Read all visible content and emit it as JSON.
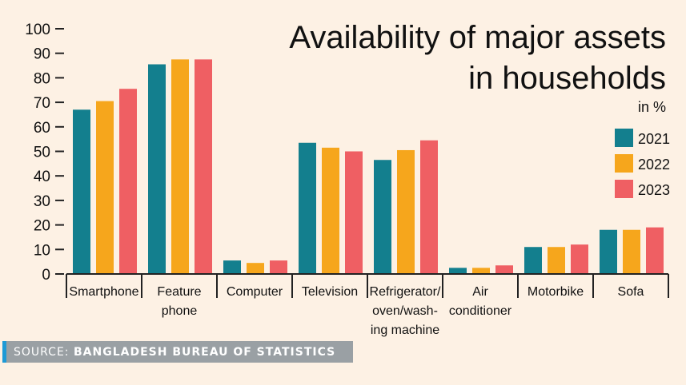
{
  "chart_data": {
    "type": "bar",
    "title": "Availability of major assets in households",
    "title_lines": [
      "Availability of major assets",
      "in households"
    ],
    "unit_label": "in %",
    "categories": [
      [
        "Smartphone"
      ],
      [
        "Feature",
        "phone"
      ],
      [
        "Computer"
      ],
      [
        "Television"
      ],
      [
        "Refrigerator/",
        "oven/wash-",
        "ing machine"
      ],
      [
        "Air",
        "conditioner"
      ],
      [
        "Motorbike"
      ],
      [
        "Sofa"
      ]
    ],
    "series": [
      {
        "name": "2021",
        "color": "#137f8e",
        "values": [
          67,
          85.5,
          5.5,
          53.5,
          46.5,
          2.5,
          11,
          18
        ]
      },
      {
        "name": "2022",
        "color": "#f6a61c",
        "values": [
          70.5,
          87.5,
          4.5,
          51.5,
          50.5,
          2.5,
          11,
          18
        ]
      },
      {
        "name": "2023",
        "color": "#ef5f63",
        "values": [
          75.5,
          87.5,
          5.5,
          50,
          54.5,
          3.5,
          12,
          19
        ]
      }
    ],
    "ylim": [
      0,
      100
    ],
    "yticks": [
      0,
      10,
      20,
      30,
      40,
      50,
      60,
      70,
      80,
      90,
      100
    ],
    "legend": "right",
    "grid": false
  },
  "source": {
    "prefix": "SOURCE: ",
    "name": "BANGLADESH BUREAU OF STATISTICS"
  }
}
